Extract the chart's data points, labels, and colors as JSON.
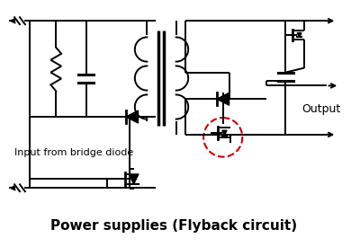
{
  "title": "Power supplies (Flyback circuit)",
  "output_label": "Output",
  "input_label": "Input from bridge diode",
  "bg_color": "#ffffff",
  "line_color": "#000000",
  "dashed_circle_color": "#cc0000",
  "title_fontsize": 11,
  "label_fontsize": 8
}
